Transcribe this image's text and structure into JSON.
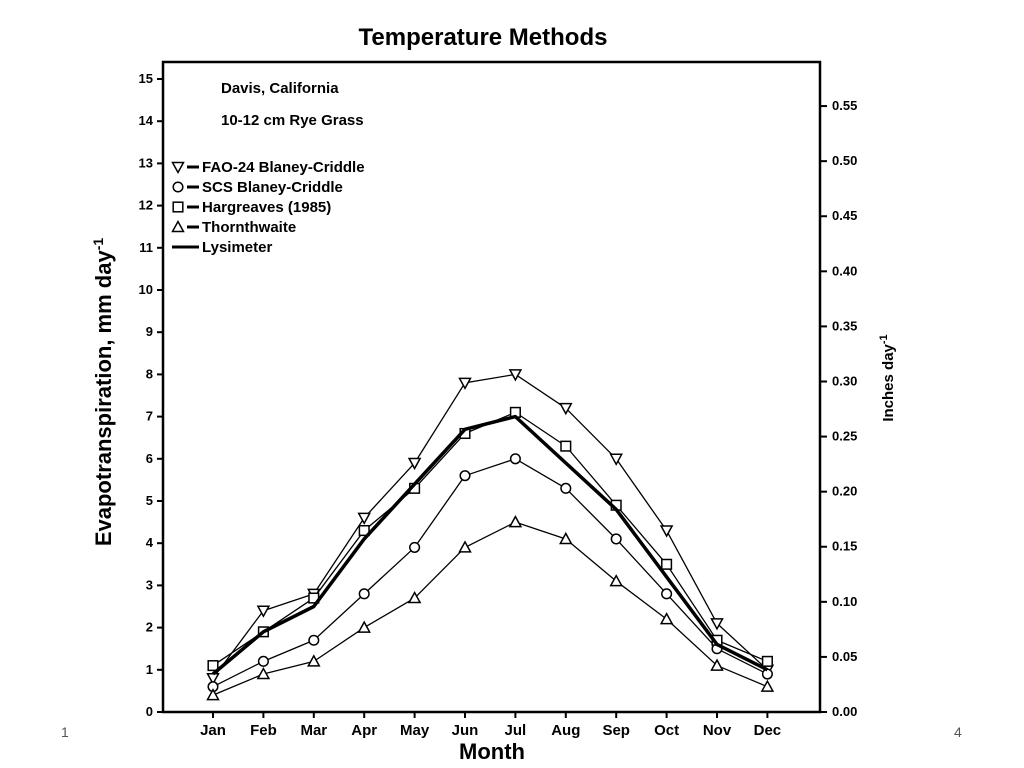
{
  "slide": {
    "number_left": "1",
    "number_right": "4"
  },
  "chart_data": {
    "type": "line",
    "title": "Temperature Methods",
    "xlabel": "Month",
    "ylabel": "Evapotranspiration, mm day",
    "ylabel_sup": "-1",
    "y2label": "Inches day",
    "y2label_sup": "-1",
    "annotations": [
      "Davis, California",
      "10-12 cm Rye Grass"
    ],
    "categories": [
      "Jan",
      "Feb",
      "Mar",
      "Apr",
      "May",
      "Jun",
      "Jul",
      "Aug",
      "Sep",
      "Oct",
      "Nov",
      "Dec"
    ],
    "ylim": [
      0,
      15
    ],
    "yticks": [
      0,
      1,
      2,
      3,
      4,
      5,
      6,
      7,
      8,
      9,
      10,
      11,
      12,
      13,
      14,
      15
    ],
    "y2lim": [
      0,
      0.59
    ],
    "y2ticks": [
      "0.00",
      "0.05",
      "0.10",
      "0.15",
      "0.20",
      "0.25",
      "0.30",
      "0.35",
      "0.40",
      "0.45",
      "0.50",
      "0.55"
    ],
    "legend_position": "upper-left",
    "series": [
      {
        "name": "FAO-24 Blaney-Criddle",
        "legend_sym": "▽",
        "marker": "triangle-down",
        "values": [
          0.8,
          2.4,
          2.8,
          4.6,
          5.9,
          7.8,
          8.0,
          7.2,
          6.0,
          4.3,
          2.1,
          1.0
        ]
      },
      {
        "name": "SCS Blaney-Criddle",
        "legend_sym": "○",
        "marker": "circle",
        "values": [
          0.6,
          1.2,
          1.7,
          2.8,
          3.9,
          5.6,
          6.0,
          5.3,
          4.1,
          2.8,
          1.5,
          0.9
        ]
      },
      {
        "name": "Hargreaves (1985)",
        "legend_sym": "□",
        "marker": "square",
        "values": [
          1.1,
          1.9,
          2.7,
          4.3,
          5.3,
          6.6,
          7.1,
          6.3,
          4.9,
          3.5,
          1.7,
          1.2
        ]
      },
      {
        "name": "Thornthwaite",
        "legend_sym": "△",
        "marker": "triangle-up",
        "values": [
          0.4,
          0.9,
          1.2,
          2.0,
          2.7,
          3.9,
          4.5,
          4.1,
          3.1,
          2.2,
          1.1,
          0.6
        ]
      },
      {
        "name": "Lysimeter",
        "legend_sym": "",
        "marker": "none",
        "thick": true,
        "values": [
          0.9,
          1.9,
          2.5,
          4.1,
          5.4,
          6.7,
          7.0,
          5.9,
          4.8,
          3.2,
          1.6,
          1.0
        ]
      }
    ]
  }
}
